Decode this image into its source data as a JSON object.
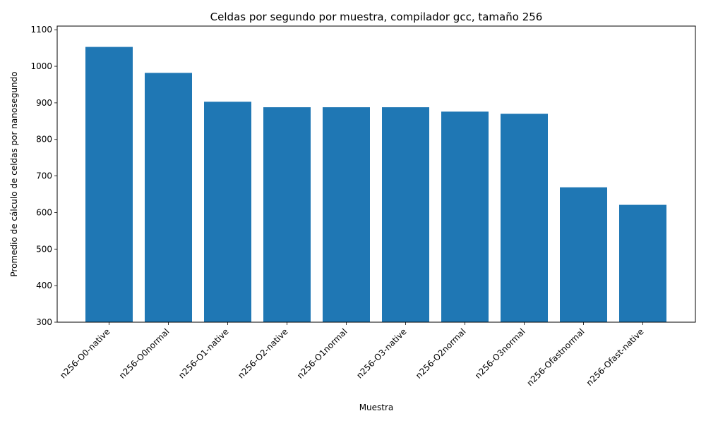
{
  "chart_data": {
    "type": "bar",
    "title": "Celdas por segundo por muestra, compilador gcc, tamaño 256",
    "xlabel": "Muestra",
    "ylabel": "Promedio de cálculo de celdas por nanosegundo",
    "categories": [
      "n256-O0-native",
      "n256-O0normal",
      "n256-O1-native",
      "n256-O2-native",
      "n256-O1normal",
      "n256-O3-native",
      "n256-O2normal",
      "n256-O3normal",
      "n256-Ofastnormal",
      "n256-Ofast-native"
    ],
    "values": [
      1053,
      982,
      903,
      888,
      888,
      888,
      876,
      870,
      669,
      621
    ],
    "ylim": [
      300,
      1110
    ],
    "yticks": [
      300,
      400,
      500,
      600,
      700,
      800,
      900,
      1000,
      1100
    ],
    "bar_color": "#1f77b4",
    "grid": false,
    "legend": "none"
  }
}
